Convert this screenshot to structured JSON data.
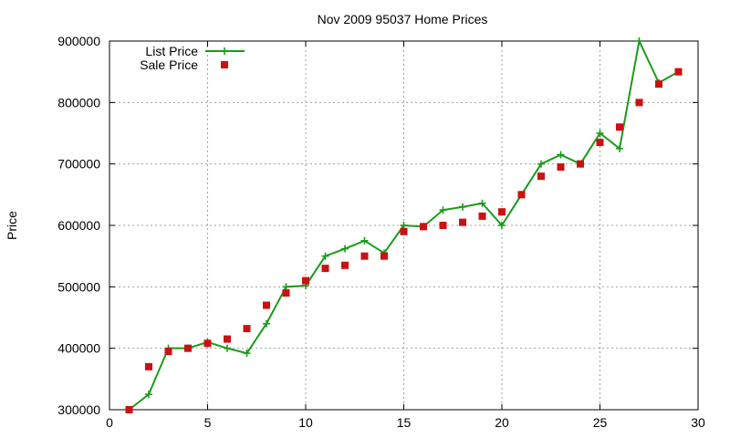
{
  "chart_data": {
    "type": "line",
    "title": "Nov 2009 95037 Home Prices",
    "xlabel": "",
    "ylabel": "Price",
    "xlim": [
      0,
      30
    ],
    "ylim": [
      300000,
      900000
    ],
    "x_ticks": [
      0,
      5,
      10,
      15,
      20,
      25,
      30
    ],
    "y_ticks": [
      300000,
      400000,
      500000,
      600000,
      700000,
      800000,
      900000
    ],
    "grid": true,
    "legend_position": "top-left",
    "series": [
      {
        "name": "List Price",
        "style": "line-with-plus-markers",
        "color": "#1a9b1a",
        "x": [
          1,
          2,
          3,
          4,
          5,
          6,
          7,
          8,
          9,
          10,
          11,
          12,
          13,
          14,
          15,
          16,
          17,
          18,
          19,
          20,
          21,
          22,
          23,
          24,
          25,
          26,
          27,
          28,
          29
        ],
        "y": [
          300000,
          325000,
          400000,
          400000,
          410000,
          400000,
          392000,
          440000,
          500000,
          502000,
          550000,
          562000,
          575000,
          555000,
          600000,
          598000,
          625000,
          630000,
          636000,
          600000,
          650000,
          700000,
          715000,
          700000,
          750000,
          725000,
          900000,
          832000,
          850000
        ]
      },
      {
        "name": "Sale Price",
        "style": "square-markers",
        "color": "#cc1111",
        "x": [
          1,
          2,
          3,
          4,
          5,
          6,
          7,
          8,
          9,
          10,
          11,
          12,
          13,
          14,
          15,
          16,
          17,
          18,
          19,
          20,
          21,
          22,
          23,
          24,
          25,
          26,
          27,
          28,
          29
        ],
        "y": [
          300000,
          370000,
          395000,
          400000,
          408000,
          415000,
          432000,
          470000,
          490000,
          510000,
          530000,
          535000,
          550000,
          550000,
          590000,
          598000,
          600000,
          605000,
          615000,
          622000,
          650000,
          680000,
          695000,
          700000,
          735000,
          760000,
          800000,
          830000,
          850000
        ]
      }
    ]
  }
}
